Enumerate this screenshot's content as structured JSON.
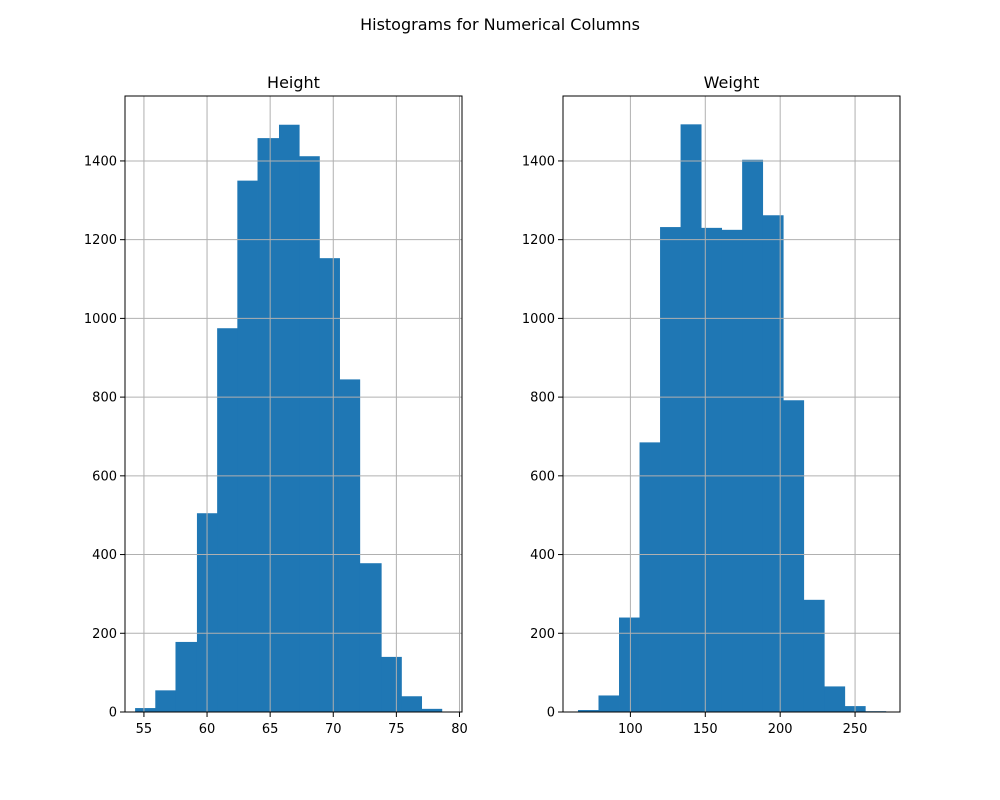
{
  "figure": {
    "title": "Histograms for Numerical Columns"
  },
  "colors": {
    "bar": "#1f77b4",
    "grid": "#b0b0b0",
    "axis": "#000000",
    "background": "#ffffff"
  },
  "chart_data": [
    {
      "type": "bar",
      "title": "Height",
      "xlabel": "",
      "ylabel": "",
      "grid": true,
      "xlim": [
        53.5,
        80.2
      ],
      "ylim": [
        0,
        1565
      ],
      "xticks": [
        55,
        60,
        65,
        70,
        75,
        80
      ],
      "yticks": [
        0,
        200,
        400,
        600,
        800,
        1000,
        1200,
        1400
      ],
      "bin_edges": [
        54.3,
        55.9,
        57.5,
        59.2,
        60.8,
        62.4,
        64.0,
        65.7,
        67.3,
        68.9,
        70.5,
        72.1,
        73.8,
        75.4,
        77.0,
        78.6
      ],
      "values": [
        10,
        55,
        178,
        505,
        975,
        1350,
        1458,
        1492,
        1412,
        1153,
        845,
        378,
        140,
        40,
        8
      ]
    },
    {
      "type": "bar",
      "title": "Weight",
      "xlabel": "",
      "ylabel": "",
      "grid": true,
      "xlim": [
        55,
        280
      ],
      "ylim": [
        0,
        1565
      ],
      "xticks": [
        100,
        150,
        200,
        250
      ],
      "yticks": [
        0,
        200,
        400,
        600,
        800,
        1000,
        1200,
        1400
      ],
      "bin_edges": [
        65.0,
        78.7,
        92.4,
        106.1,
        119.8,
        133.5,
        147.2,
        160.9,
        174.6,
        188.3,
        202.0,
        215.7,
        229.4,
        243.1,
        256.8,
        270.5
      ],
      "values": [
        5,
        42,
        240,
        685,
        1232,
        1493,
        1230,
        1225,
        1403,
        1262,
        792,
        285,
        65,
        15,
        2
      ]
    }
  ]
}
